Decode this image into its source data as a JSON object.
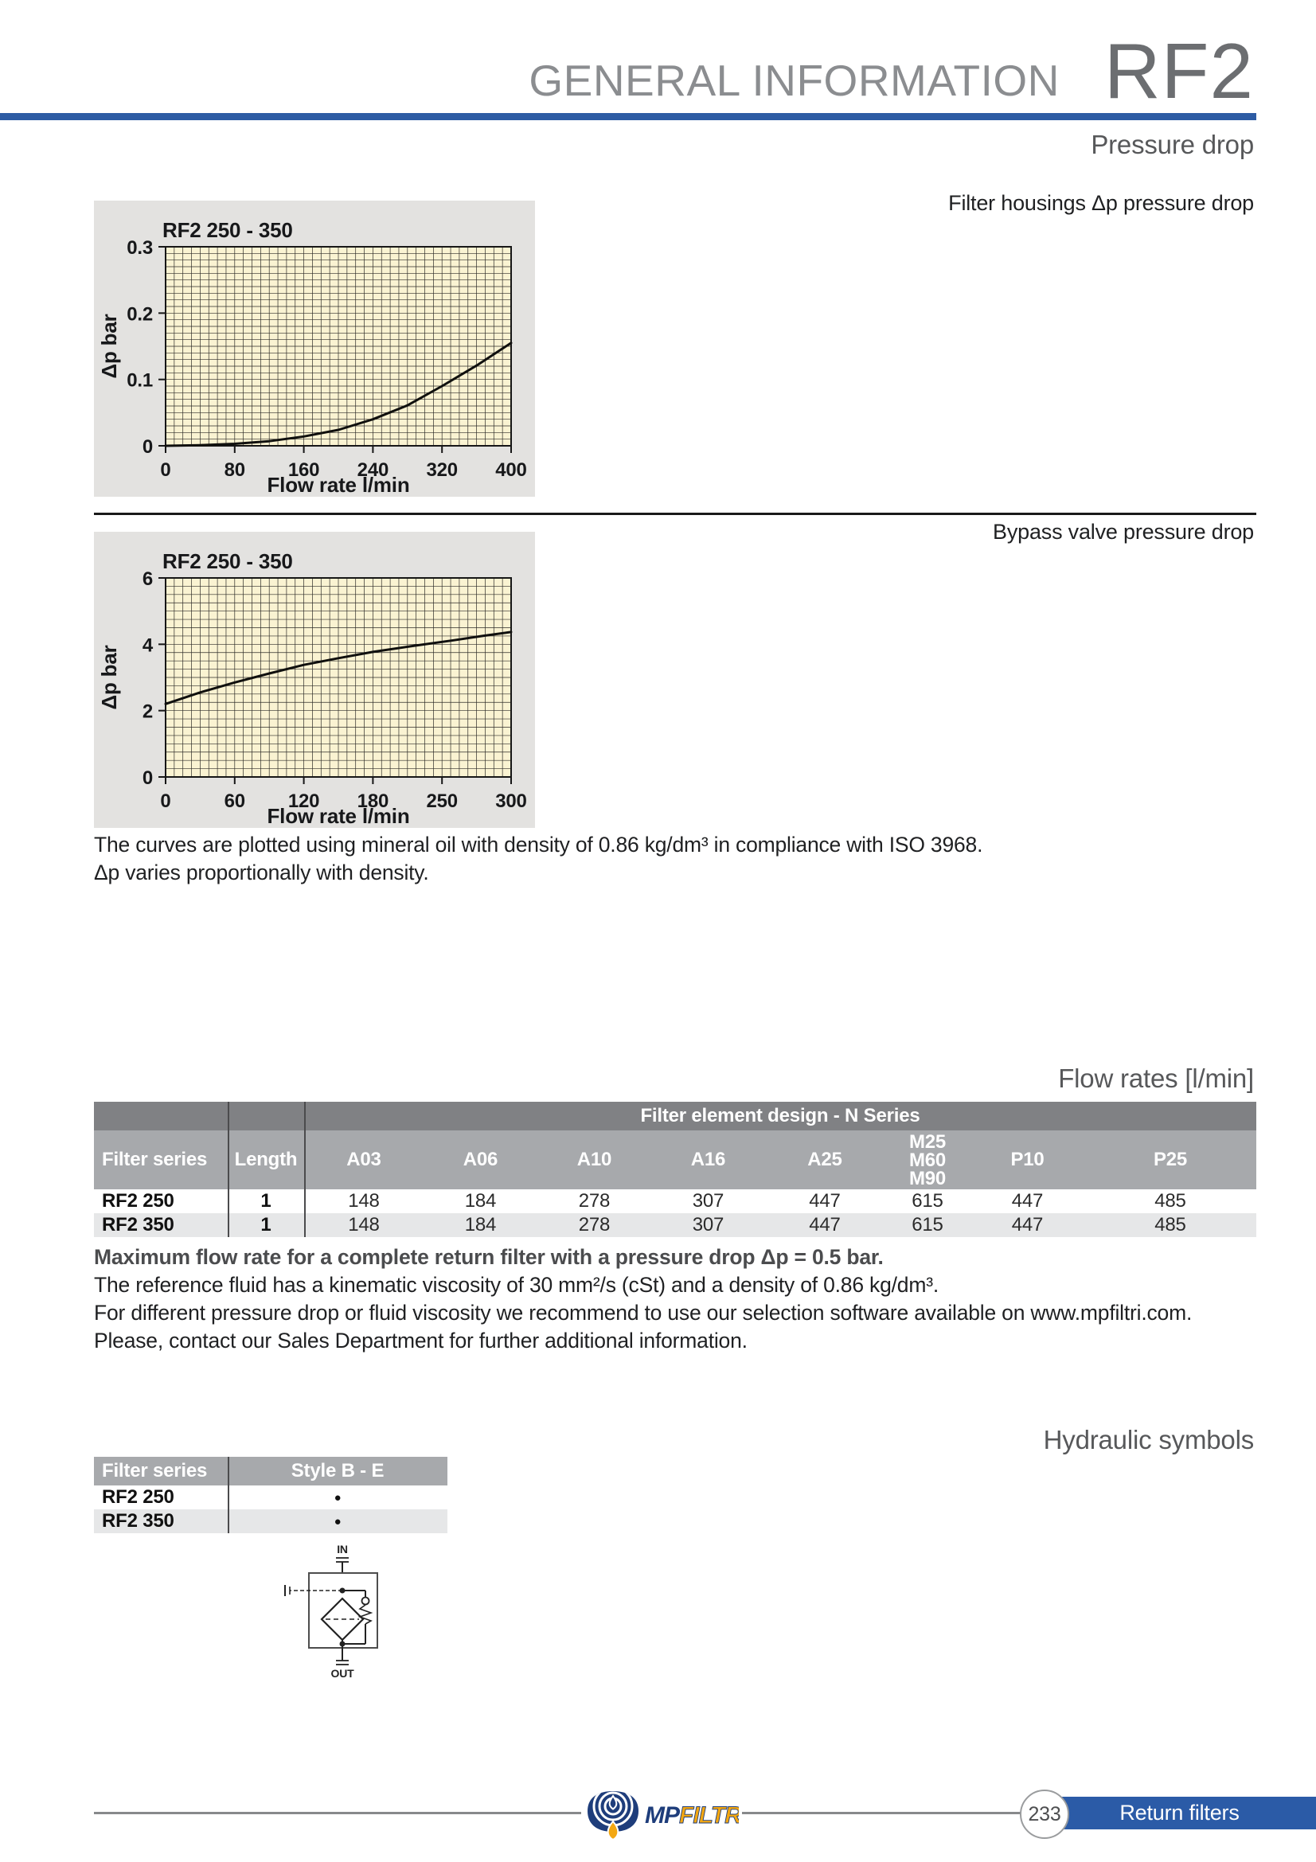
{
  "header": {
    "title": "GENERAL INFORMATION",
    "product": "RF2",
    "section_heading": "Pressure drop"
  },
  "sections": {
    "chart1_label": "Filter housings Δp pressure drop",
    "chart2_label": "Bypass valve pressure drop",
    "flow_heading": "Flow rates [l/min]",
    "hydraulic_heading": "Hydraulic symbols"
  },
  "chart_data": [
    {
      "type": "line",
      "title": "RF2 250 - 350",
      "xlabel": "Flow rate l/min",
      "ylabel": "Δp bar",
      "x_ticks": [
        "0",
        "80",
        "160",
        "240",
        "320",
        "400"
      ],
      "y_ticks": [
        "0",
        "0.1",
        "0.2",
        "0.3"
      ],
      "xlim": [
        0,
        400
      ],
      "ylim": [
        0,
        0.3
      ],
      "x_minor_div": 40,
      "y_minor_div": 30,
      "grid": true,
      "legend": "none",
      "curve": [
        [
          0,
          0
        ],
        [
          40,
          0.001
        ],
        [
          80,
          0.003
        ],
        [
          120,
          0.007
        ],
        [
          160,
          0.014
        ],
        [
          200,
          0.024
        ],
        [
          240,
          0.04
        ],
        [
          280,
          0.061
        ],
        [
          320,
          0.09
        ],
        [
          360,
          0.121
        ],
        [
          400,
          0.155
        ]
      ]
    },
    {
      "type": "line",
      "title": "RF2 250 - 350",
      "xlabel": "Flow rate l/min",
      "ylabel": "Δp bar",
      "x_ticks": [
        "0",
        "60",
        "120",
        "180",
        "250",
        "300"
      ],
      "y_ticks": [
        "0",
        "2",
        "4",
        "6"
      ],
      "xlim": [
        0,
        300
      ],
      "ylim": [
        0,
        6
      ],
      "x_minor_div": 40,
      "y_minor_div": 24,
      "grid": true,
      "legend": "none",
      "curve": [
        [
          0,
          2.2
        ],
        [
          30,
          2.55
        ],
        [
          60,
          2.85
        ],
        [
          90,
          3.12
        ],
        [
          120,
          3.38
        ],
        [
          150,
          3.58
        ],
        [
          180,
          3.77
        ],
        [
          215,
          3.95
        ],
        [
          250,
          4.12
        ],
        [
          275,
          4.25
        ],
        [
          300,
          4.37
        ]
      ]
    }
  ],
  "notes": {
    "line1": "The curves are plotted using mineral oil with density of 0.86 kg/dm³ in compliance with ISO 3968.",
    "line2": "Δp varies proportionally with density."
  },
  "flow_table": {
    "group_header": "Filter element design  -  N Series",
    "col1_header": "Filter series",
    "col2_header": "Length",
    "element_cols": [
      "A03",
      "A06",
      "A10",
      "A16",
      "A25"
    ],
    "m_col": [
      "M25",
      "M60",
      "M90"
    ],
    "p_cols": [
      "P10",
      "P25"
    ],
    "rows": [
      {
        "series": "RF2 250",
        "length": "1",
        "values": [
          148,
          184,
          278,
          307,
          447,
          615,
          447,
          485
        ]
      },
      {
        "series": "RF2 350",
        "length": "1",
        "values": [
          148,
          184,
          278,
          307,
          447,
          615,
          447,
          485
        ]
      }
    ]
  },
  "max_flow": {
    "bold_line": "Maximum flow rate for a complete return filter with a pressure drop Δp = 0.5 bar.",
    "line2": "The reference fluid has a kinematic viscosity of 30 mm²/s (cSt) and a density of 0.86 kg/dm³.",
    "line3_prefix": "For different pressure drop or fluid viscosity we recommend to use our selection software available on ",
    "line3_link": "www.mpfiltri.com",
    "line3_suffix": ".",
    "line4": "Please, contact our Sales Department for further additional information."
  },
  "hydraulic_table": {
    "col1_header": "Filter series",
    "col2_header": "Style B - E",
    "bullet": "●",
    "rows": [
      {
        "series": "RF2 250"
      },
      {
        "series": "RF2 350"
      }
    ]
  },
  "symbol": {
    "in_label": "IN",
    "out_label": "OUT"
  },
  "footer": {
    "page_number": "233",
    "section": "Return filters",
    "logo_mp": "MP",
    "logo_filtri": "FILTRI",
    "logo_reg": "®"
  },
  "colors": {
    "accent_blue": "#2d5ca4",
    "footer_bar_blue": "#2b5ba7",
    "table_dark_header": "#808184",
    "table_light_header": "#a7a9ac",
    "row_alt": "#e6e7e8",
    "chart_box_bg": "#e3e2e0",
    "plot_bg": "#faf3d2",
    "logo_navy": "#1e3d7b",
    "logo_yellow": "#f3a712"
  }
}
